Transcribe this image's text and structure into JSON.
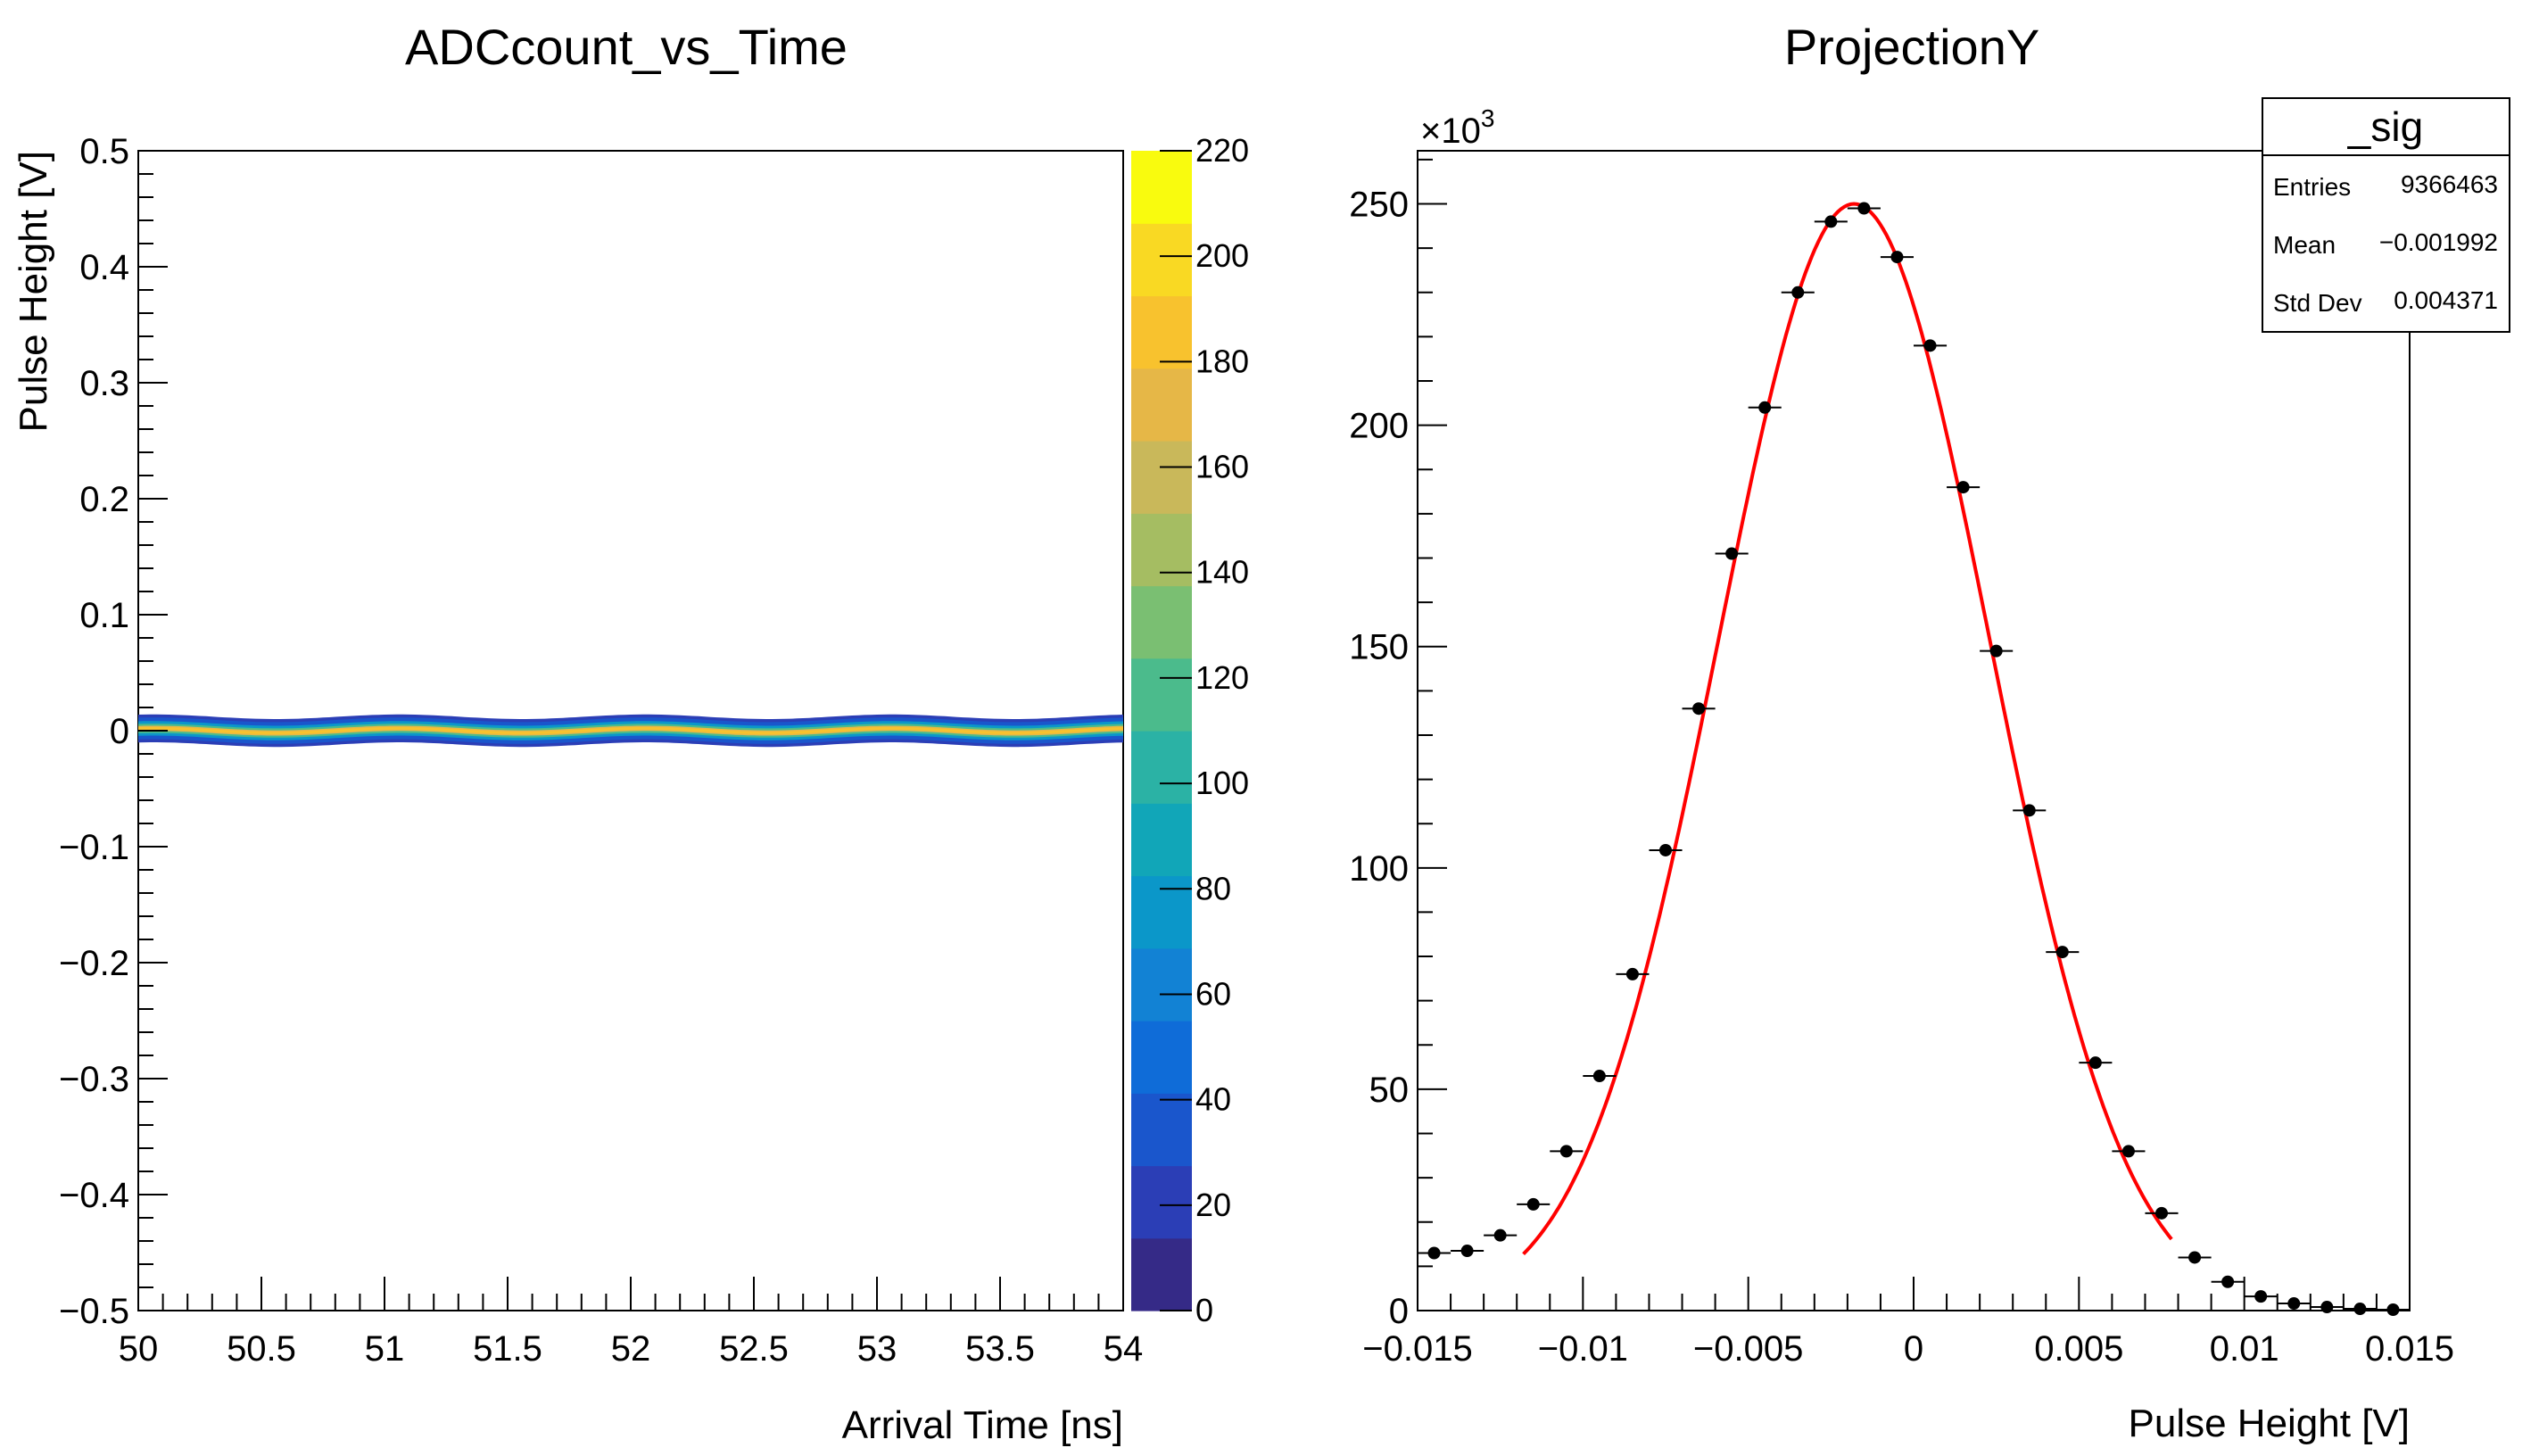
{
  "chart_data": [
    {
      "type": "heatmap",
      "title": "ADCcount_vs_Time",
      "xlabel": "Arrival Time [ns]",
      "ylabel": "Pulse Height [V]",
      "xlim": [
        50,
        54
      ],
      "ylim": [
        -0.5,
        0.5
      ],
      "x_ticks": [
        "50",
        "50.5",
        "51",
        "51.5",
        "52",
        "52.5",
        "53",
        "53.5",
        "54"
      ],
      "y_ticks": [
        "−0.5",
        "−0.4",
        "−0.3",
        "−0.2",
        "−0.1",
        "0",
        "0.1",
        "0.2",
        "0.3",
        "0.4",
        "0.5"
      ],
      "band": {
        "x_start": 50,
        "x_end": 54,
        "center": 0,
        "ripple_amplitude": 0.002,
        "ripple_period": 1.0,
        "core_halfwidth": 0.005,
        "halo_halfwidth": 0.012
      },
      "colorbar": {
        "range": [
          0,
          220
        ],
        "ticks": [
          "0",
          "20",
          "40",
          "60",
          "80",
          "100",
          "120",
          "140",
          "160",
          "180",
          "200",
          "220"
        ],
        "palette": [
          "#352a87",
          "#2b3eb6",
          "#1a56cc",
          "#0f6cd8",
          "#1282d4",
          "#0b97c9",
          "#11a6b8",
          "#2bb2a5",
          "#4bbb8c",
          "#7abf72",
          "#a5bd62",
          "#c9b85a",
          "#e6b747",
          "#f8c22e",
          "#f9d923",
          "#f9fb0e"
        ]
      }
    },
    {
      "type": "scatter",
      "title": "ProjectionY",
      "xlabel": "Pulse Height [V]",
      "ylabel": "",
      "xlim": [
        -0.015,
        0.015
      ],
      "ylim": [
        0,
        262000
      ],
      "x_ticks": [
        "−0.015",
        "−0.01",
        "−0.005",
        "0",
        "0.005",
        "0.01",
        "0.015"
      ],
      "y_ticks": [
        "0",
        "50",
        "100",
        "150",
        "200",
        "250"
      ],
      "y_multiplier": "×10",
      "y_multiplier_exp": "3",
      "bin_width": 0.001,
      "x": [
        -0.0145,
        -0.0135,
        -0.0125,
        -0.0115,
        -0.0105,
        -0.0095,
        -0.0085,
        -0.0075,
        -0.0065,
        -0.0055,
        -0.0045,
        -0.0035,
        -0.0025,
        -0.0015,
        -0.0005,
        0.0005,
        0.0015,
        0.0025,
        0.0035,
        0.0045,
        0.0055,
        0.0065,
        0.0075,
        0.0085,
        0.0095,
        0.0105,
        0.0115,
        0.0125,
        0.0135,
        0.0145
      ],
      "values": [
        13000,
        13500,
        17000,
        24000,
        36000,
        53000,
        76000,
        104000,
        136000,
        171000,
        204000,
        230000,
        246000,
        249000,
        238000,
        218000,
        186000,
        149000,
        113000,
        81000,
        56000,
        36000,
        22000,
        12000,
        6500,
        3200,
        1600,
        800,
        400,
        200
      ],
      "fit": {
        "function": "gaus",
        "constant": 250000,
        "mean": -0.0018,
        "sigma": 0.0041,
        "range": [
          -0.0118,
          0.0078
        ],
        "color": "#ff0000"
      },
      "stats_box": {
        "title": "_sig",
        "rows": [
          {
            "label": "Entries",
            "value": "9366463"
          },
          {
            "label": "Mean",
            "value": "−0.001992"
          },
          {
            "label": "Std Dev",
            "value": "0.004371"
          }
        ]
      }
    }
  ]
}
